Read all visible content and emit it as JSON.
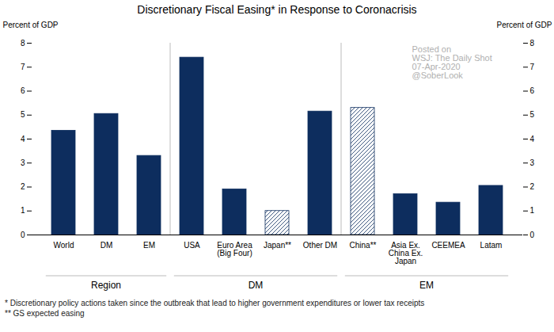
{
  "chart_data": {
    "type": "bar",
    "title": "Discretionary Fiscal Easing* in Response to Coronacrisis",
    "ylabel": "Percent of GDP",
    "y2label": "Percent of GDP",
    "categories": [
      "World",
      "DM",
      "EM",
      "USA",
      "Euro Area\n(Big Four)",
      "Japan**",
      "Other DM",
      "China**",
      "Asia Ex.\nChina Ex.\nJapan",
      "CEEMEA",
      "Latam"
    ],
    "values": [
      4.35,
      5.05,
      3.3,
      7.4,
      1.9,
      1.0,
      5.15,
      5.3,
      1.7,
      1.35,
      2.05
    ],
    "color": "#0d2d5e",
    "colors": [
      "#0d2d5e",
      "#0d2d5e",
      "#0d2d5e",
      "#0d2d5e",
      "#0d2d5e",
      "#ffffff",
      "#0d2d5e",
      "#ffffff",
      "#0d2d5e",
      "#0d2d5e",
      "#0d2d5e"
    ],
    "ylim": [
      0,
      8
    ],
    "yticks": [
      0,
      1,
      2,
      3,
      4,
      5,
      6,
      7,
      8
    ],
    "y2lim": [
      0,
      8
    ],
    "y2ticks": [
      0,
      1,
      2,
      3,
      4,
      5,
      6,
      7,
      8
    ],
    "grid": false,
    "groups": [
      {
        "label": "Region",
        "categories": [
          "World",
          "DM",
          "EM"
        ]
      },
      {
        "label": "DM",
        "categories": [
          "USA",
          "Euro Area\n(Big Four)",
          "Japan**",
          "Other DM"
        ]
      },
      {
        "label": "EM",
        "categories": [
          "China**",
          "Asia Ex.\nChina Ex.\nJapan",
          "CEEMEA",
          "Latam"
        ]
      }
    ],
    "annotations": [
      "Posted on",
      "WSJ: The Daily Shot",
      "07-Apr-2020",
      "@SoberLook"
    ],
    "notes": [
      "* Discretionary policy actions taken since the outbreak that lead to higher government expenditures or lower tax receipts",
      "** GS expected easing"
    ]
  }
}
